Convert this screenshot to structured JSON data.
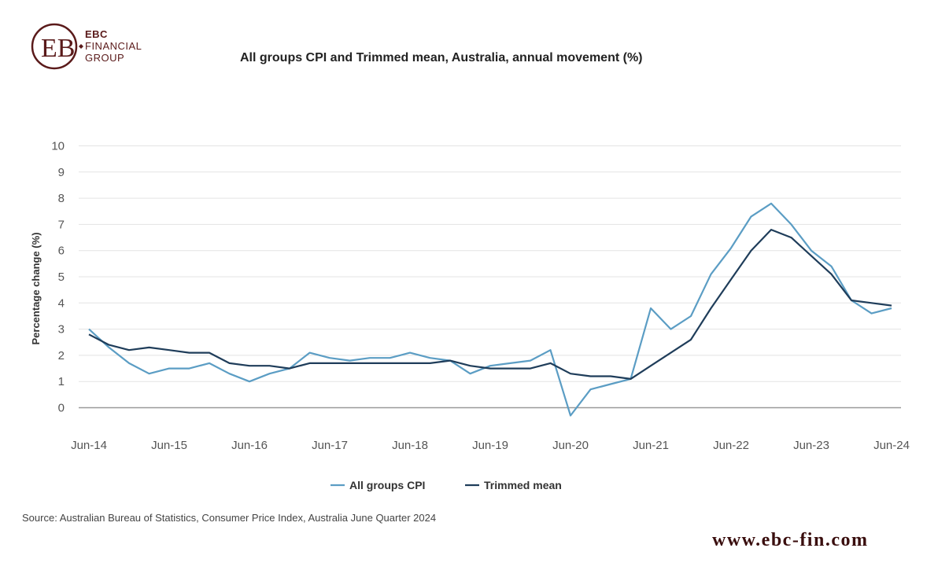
{
  "brand": {
    "name_line1": "EBC",
    "name_line2": "FINANCIAL",
    "name_line3": "GROUP",
    "logo_letters": "EB",
    "color": "#5a1a1a"
  },
  "footer": {
    "source": "Source: Australian Bureau of Statistics, Consumer Price Index, Australia June Quarter 2024",
    "website": "www.ebc-fin.com"
  },
  "chart_data": {
    "type": "line",
    "title": "All groups CPI and Trimmed mean, Australia, annual movement (%)",
    "xlabel": "",
    "ylabel": "Percentage change (%)",
    "ylim": [
      -1,
      10
    ],
    "yticks": [
      0,
      1,
      2,
      3,
      4,
      5,
      6,
      7,
      8,
      9,
      10
    ],
    "grid": true,
    "legend_position": "bottom-center",
    "x": [
      "Jun-14",
      "Sep-14",
      "Dec-14",
      "Mar-15",
      "Jun-15",
      "Sep-15",
      "Dec-15",
      "Mar-16",
      "Jun-16",
      "Sep-16",
      "Dec-16",
      "Mar-17",
      "Jun-17",
      "Sep-17",
      "Dec-17",
      "Mar-18",
      "Jun-18",
      "Sep-18",
      "Dec-18",
      "Mar-19",
      "Jun-19",
      "Sep-19",
      "Dec-19",
      "Mar-20",
      "Jun-20",
      "Sep-20",
      "Dec-20",
      "Mar-21",
      "Jun-21",
      "Sep-21",
      "Dec-21",
      "Mar-22",
      "Jun-22",
      "Sep-22",
      "Dec-22",
      "Mar-23",
      "Jun-23",
      "Sep-23",
      "Dec-23",
      "Mar-24",
      "Jun-24"
    ],
    "xtick_labels": [
      "Jun-14",
      "Jun-15",
      "Jun-16",
      "Jun-17",
      "Jun-18",
      "Jun-19",
      "Jun-20",
      "Jun-21",
      "Jun-22",
      "Jun-23",
      "Jun-24"
    ],
    "series": [
      {
        "name": "All groups CPI",
        "color": "#5b9dc4",
        "values": [
          3.0,
          2.3,
          1.7,
          1.3,
          1.5,
          1.5,
          1.7,
          1.3,
          1.0,
          1.3,
          1.5,
          2.1,
          1.9,
          1.8,
          1.9,
          1.9,
          2.1,
          1.9,
          1.8,
          1.3,
          1.6,
          1.7,
          1.8,
          2.2,
          -0.3,
          0.7,
          0.9,
          1.1,
          3.8,
          3.0,
          3.5,
          5.1,
          6.1,
          7.3,
          7.8,
          7.0,
          6.0,
          5.4,
          4.1,
          3.6,
          3.8
        ]
      },
      {
        "name": "Trimmed mean",
        "color": "#1f3d5a",
        "values": [
          2.8,
          2.4,
          2.2,
          2.3,
          2.2,
          2.1,
          2.1,
          1.7,
          1.6,
          1.6,
          1.5,
          1.7,
          1.7,
          1.7,
          1.7,
          1.7,
          1.7,
          1.7,
          1.8,
          1.6,
          1.5,
          1.5,
          1.5,
          1.7,
          1.3,
          1.2,
          1.2,
          1.1,
          1.6,
          2.1,
          2.6,
          3.8,
          4.9,
          6.0,
          6.8,
          6.5,
          5.8,
          5.1,
          4.1,
          4.0,
          3.9
        ]
      }
    ]
  }
}
